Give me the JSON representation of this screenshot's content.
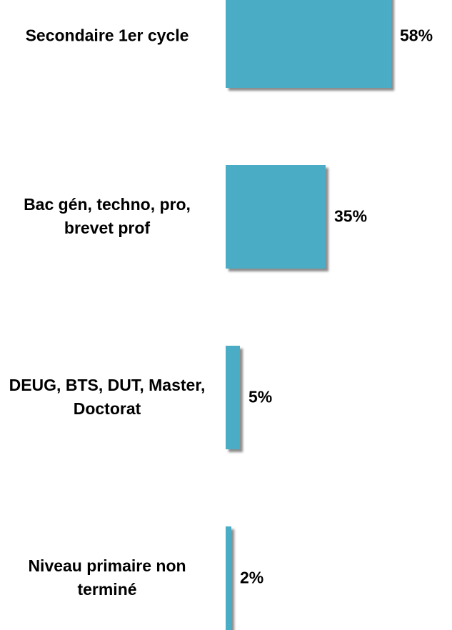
{
  "chart_data": {
    "type": "bar",
    "orientation": "horizontal",
    "categories": [
      "Secondaire 1er cycle",
      "Bac gén, techno, pro, brevet prof",
      "DEUG, BTS, DUT, Master, Doctorat",
      "Niveau primaire non terminé"
    ],
    "values": [
      58,
      35,
      5,
      2
    ],
    "value_labels": [
      "58%",
      "35%",
      "5%",
      "2%"
    ],
    "color": "#4bacc6"
  }
}
